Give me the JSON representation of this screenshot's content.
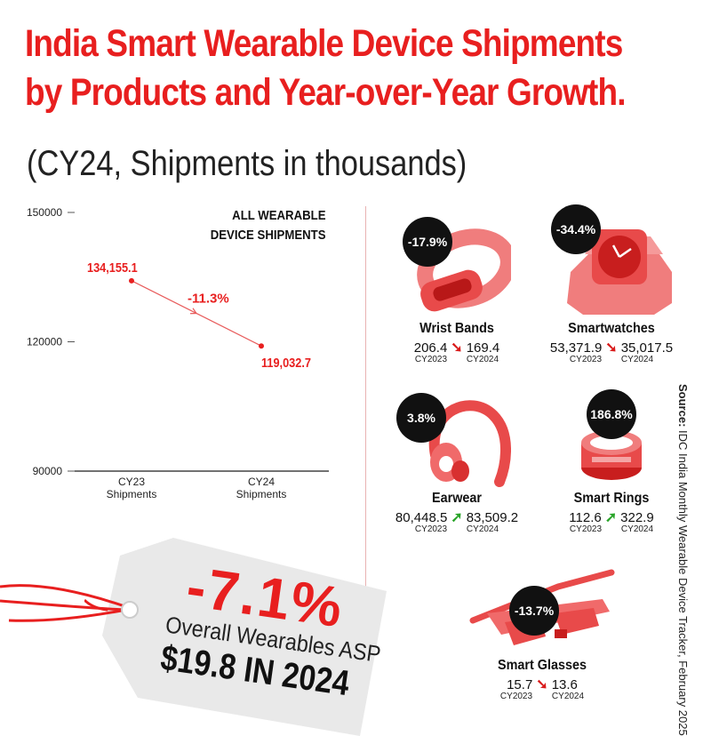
{
  "title_line1": "India Smart Wearable Device Shipments",
  "title_line2": "by Products and Year-over-Year Growth.",
  "subtitle": "(CY24, Shipments in thousands)",
  "source_label": "Source:",
  "source_text": "IDC India Monthly Wearable Device Tracker, February 2025",
  "chart_data": {
    "type": "line",
    "title": "ALL WEARABLE DEVICE SHIPMENTS",
    "title_line1": "ALL WEARABLE",
    "title_line2": "DEVICE SHIPMENTS",
    "categories": [
      "CY23 Shipments",
      "CY24 Shipments"
    ],
    "category_lines": [
      [
        "CY23",
        "Shipments"
      ],
      [
        "CY24",
        "Shipments"
      ]
    ],
    "values": [
      134155.1,
      119032.7
    ],
    "value_labels": [
      "134,155.1",
      "119,032.7"
    ],
    "growth_label": "-11.3%",
    "ylim": [
      90000,
      150000
    ],
    "yticks": [
      150000,
      120000,
      90000
    ],
    "ytick_labels": [
      "150000",
      "120000",
      "90000"
    ],
    "grid": false,
    "line_color": "#e85c5c",
    "label_color": "#e81f1f"
  },
  "products": [
    {
      "name": "Wrist Bands",
      "growth": "-17.9%",
      "v2023": "206.4",
      "v2024": "169.4",
      "trend": "down",
      "icon": "wrist-band-icon"
    },
    {
      "name": "Smartwatches",
      "growth": "-34.4%",
      "v2023": "53,371.9",
      "v2024": "35,017.5",
      "trend": "down",
      "icon": "smartwatch-icon"
    },
    {
      "name": "Earwear",
      "growth": "3.8%",
      "v2023": "80,448.5",
      "v2024": "83,509.2",
      "trend": "up",
      "icon": "earwear-icon"
    },
    {
      "name": "Smart Rings",
      "growth": "186.8%",
      "v2023": "112.6",
      "v2024": "322.9",
      "trend": "up",
      "icon": "smart-ring-icon"
    },
    {
      "name": "Smart Glasses",
      "growth": "-13.7%",
      "v2023": "15.7",
      "v2024": "13.6",
      "trend": "down",
      "icon": "smart-glasses-icon"
    }
  ],
  "year_labels": {
    "y1": "CY2023",
    "y2": "CY2024"
  },
  "tag": {
    "pct": "-7.1%",
    "asp_label": "Overall Wearables ASP",
    "asp_value": "$19.8 IN 2024"
  },
  "colors": {
    "accent": "#e81f1f",
    "up": "#28a428",
    "down": "#d91b1b",
    "product": "#f06a6a"
  }
}
